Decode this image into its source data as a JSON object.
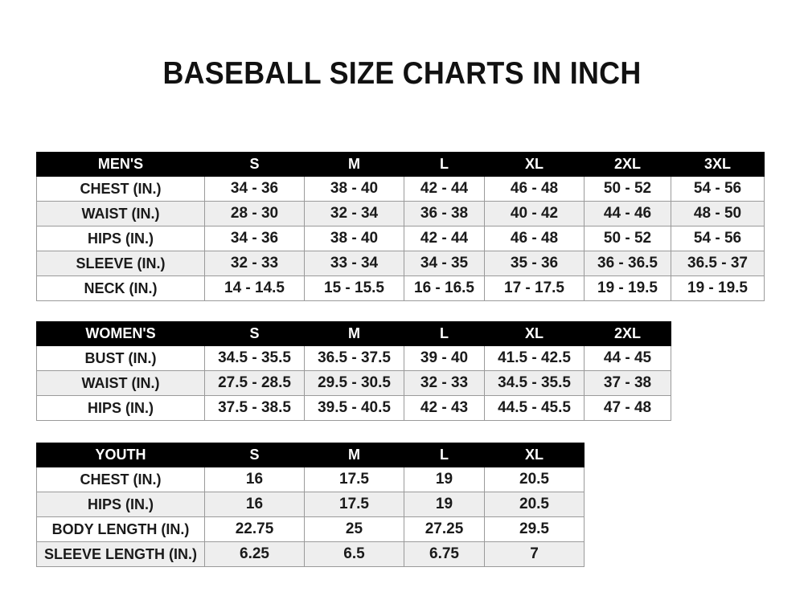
{
  "title": "BASEBALL SIZE CHARTS IN INCH",
  "tables": [
    {
      "id": "men",
      "header": [
        "MEN'S",
        "S",
        "M",
        "L",
        "XL",
        "2XL",
        "3XL"
      ],
      "rows": [
        [
          "CHEST (IN.)",
          "34 - 36",
          "38 - 40",
          "42 - 44",
          "46 - 48",
          "50 - 52",
          "54 - 56"
        ],
        [
          "WAIST (IN.)",
          "28 - 30",
          "32 - 34",
          "36 - 38",
          "40 - 42",
          "44 - 46",
          "48 - 50"
        ],
        [
          "HIPS (IN.)",
          "34 - 36",
          "38 - 40",
          "42 - 44",
          "46 - 48",
          "50 - 52",
          "54 - 56"
        ],
        [
          "SLEEVE (IN.)",
          "32 - 33",
          "33 - 34",
          "34 - 35",
          "35 - 36",
          "36 - 36.5",
          "36.5 - 37"
        ],
        [
          "NECK (IN.)",
          "14 - 14.5",
          "15 - 15.5",
          "16 - 16.5",
          "17 - 17.5",
          "19 - 19.5",
          "19 - 19.5"
        ]
      ]
    },
    {
      "id": "women",
      "header": [
        "WOMEN'S",
        "S",
        "M",
        "L",
        "XL",
        "2XL"
      ],
      "rows": [
        [
          "BUST (IN.)",
          "34.5 - 35.5",
          "36.5 - 37.5",
          "39 - 40",
          "41.5 - 42.5",
          "44 - 45"
        ],
        [
          "WAIST (IN.)",
          "27.5 - 28.5",
          "29.5 - 30.5",
          "32 - 33",
          "34.5 - 35.5",
          "37 - 38"
        ],
        [
          "HIPS (IN.)",
          "37.5 - 38.5",
          "39.5 - 40.5",
          "42 - 43",
          "44.5 - 45.5",
          "47 - 48"
        ]
      ]
    },
    {
      "id": "youth",
      "header": [
        "YOUTH",
        "S",
        "M",
        "L",
        "XL"
      ],
      "rows": [
        [
          "CHEST (IN.)",
          "16",
          "17.5",
          "19",
          "20.5"
        ],
        [
          "HIPS (IN.)",
          "16",
          "17.5",
          "19",
          "20.5"
        ],
        [
          "BODY LENGTH (IN.)",
          "22.75",
          "25",
          "27.25",
          "29.5"
        ],
        [
          "SLEEVE LENGTH (IN.)",
          "6.25",
          "6.5",
          "6.75",
          "7"
        ]
      ]
    }
  ],
  "colors": {
    "header_bg": "#000000",
    "header_text": "#ffffff",
    "alt_row_bg": "#eeeeee"
  }
}
